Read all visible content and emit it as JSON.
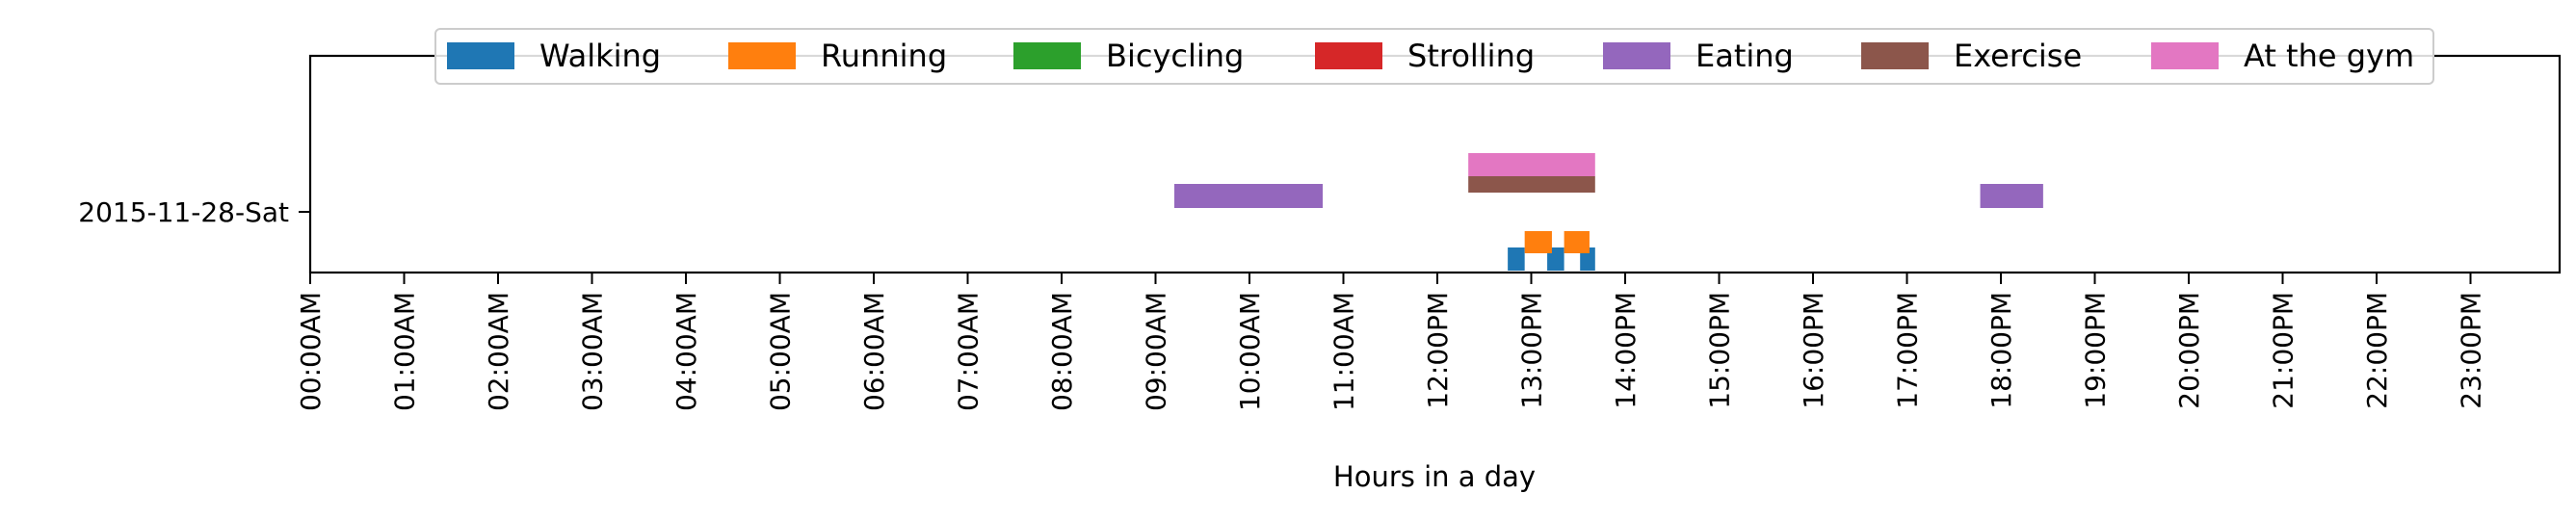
{
  "chart_data": {
    "type": "broken-barh",
    "xlabel": "Hours in a day",
    "ylabel": "",
    "xlim": [
      0,
      24
    ],
    "x_ticks": [
      "00:00AM",
      "01:00AM",
      "02:00AM",
      "03:00AM",
      "04:00AM",
      "05:00AM",
      "06:00AM",
      "07:00AM",
      "08:00AM",
      "09:00AM",
      "10:00AM",
      "11:00AM",
      "12:00PM",
      "13:00PM",
      "14:00PM",
      "15:00PM",
      "16:00PM",
      "17:00PM",
      "18:00PM",
      "19:00PM",
      "20:00PM",
      "21:00PM",
      "22:00PM",
      "23:00PM"
    ],
    "y_ticks": [
      "2015-11-28-Sat"
    ],
    "grid": false,
    "legend_position": "top",
    "legend": [
      {
        "name": "Walking",
        "color": "#1f77b4"
      },
      {
        "name": "Running",
        "color": "#ff7f0e"
      },
      {
        "name": "Bicycling",
        "color": "#2ca02c"
      },
      {
        "name": "Strolling",
        "color": "#d62728"
      },
      {
        "name": "Eating",
        "color": "#9467bd"
      },
      {
        "name": "Exercise",
        "color": "#8c564b"
      },
      {
        "name": "At the gym",
        "color": "#e377c2"
      }
    ],
    "series": [
      {
        "activity": "Walking",
        "date": "2015-11-28-Sat",
        "intervals": [
          [
            12.75,
            12.93
          ],
          [
            13.17,
            13.35
          ],
          [
            13.52,
            13.68
          ]
        ]
      },
      {
        "activity": "Running",
        "date": "2015-11-28-Sat",
        "intervals": [
          [
            12.93,
            13.22
          ],
          [
            13.35,
            13.62
          ]
        ]
      },
      {
        "activity": "Bicycling",
        "date": "2015-11-28-Sat",
        "intervals": []
      },
      {
        "activity": "Strolling",
        "date": "2015-11-28-Sat",
        "intervals": []
      },
      {
        "activity": "Eating",
        "date": "2015-11-28-Sat",
        "intervals": [
          [
            9.2,
            10.78
          ],
          [
            17.78,
            18.45
          ]
        ]
      },
      {
        "activity": "Exercise",
        "date": "2015-11-28-Sat",
        "intervals": [
          [
            12.33,
            13.68
          ]
        ]
      },
      {
        "activity": "At the gym",
        "date": "2015-11-28-Sat",
        "intervals": [
          [
            12.33,
            13.68
          ]
        ]
      }
    ]
  }
}
